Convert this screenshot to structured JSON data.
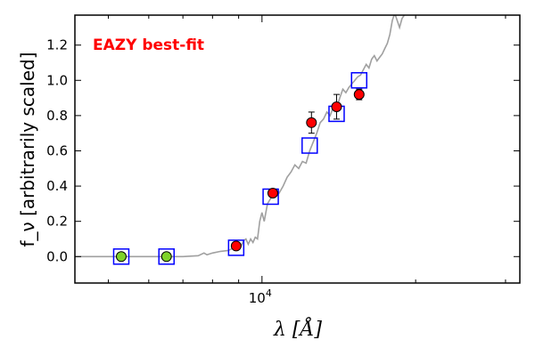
{
  "chart_data": {
    "type": "scatter",
    "annotation": "EAZY best-fit",
    "annotation_color": "#ff0000",
    "ylabel": "f_ν [arbitrarily scaled]",
    "xlabel": "λ [Å]",
    "x_scale": "log",
    "xlim": [
      4300,
      32000
    ],
    "ylim": [
      -0.15,
      1.37
    ],
    "yticks": [
      "0.0",
      "0.2",
      "0.4",
      "0.6",
      "0.8",
      "1.0",
      "1.2"
    ],
    "xtick_label": "10^4",
    "colors": {
      "model_line": "#a0a0a0",
      "model_box": "#0000ff",
      "detection": "#ff0000",
      "upper_limit": "#7fd32a"
    },
    "model_points": [
      {
        "x": 5300,
        "y": 0.0
      },
      {
        "x": 6500,
        "y": 0.0
      },
      {
        "x": 8900,
        "y": 0.05
      },
      {
        "x": 10400,
        "y": 0.34
      },
      {
        "x": 12400,
        "y": 0.63
      },
      {
        "x": 14000,
        "y": 0.81
      },
      {
        "x": 15500,
        "y": 1.0
      }
    ],
    "nondetections": [
      {
        "x": 5300,
        "y": 0.0
      },
      {
        "x": 6500,
        "y": 0.0
      }
    ],
    "detections": [
      {
        "x": 8900,
        "y": 0.06,
        "err": 0.0
      },
      {
        "x": 10500,
        "y": 0.36,
        "err": 0.01
      },
      {
        "x": 12500,
        "y": 0.76,
        "err": 0.06
      },
      {
        "x": 14000,
        "y": 0.85,
        "err": 0.07
      },
      {
        "x": 15500,
        "y": 0.92,
        "err": 0.03
      }
    ],
    "model_sed": [
      [
        4300,
        0.0
      ],
      [
        7000,
        0.0
      ],
      [
        7500,
        0.005
      ],
      [
        7700,
        0.02
      ],
      [
        7800,
        0.01
      ],
      [
        8000,
        0.02
      ],
      [
        8300,
        0.03
      ],
      [
        8600,
        0.035
      ],
      [
        8800,
        0.05
      ],
      [
        9000,
        0.075
      ],
      [
        9100,
        0.06
      ],
      [
        9200,
        0.09
      ],
      [
        9300,
        0.1
      ],
      [
        9400,
        0.07
      ],
      [
        9500,
        0.1
      ],
      [
        9600,
        0.08
      ],
      [
        9700,
        0.11
      ],
      [
        9800,
        0.1
      ],
      [
        9900,
        0.2
      ],
      [
        10000,
        0.25
      ],
      [
        10100,
        0.2
      ],
      [
        10250,
        0.3
      ],
      [
        10400,
        0.33
      ],
      [
        10600,
        0.38
      ],
      [
        10800,
        0.36
      ],
      [
        11000,
        0.4
      ],
      [
        11200,
        0.45
      ],
      [
        11400,
        0.48
      ],
      [
        11600,
        0.52
      ],
      [
        11800,
        0.5
      ],
      [
        12000,
        0.54
      ],
      [
        12200,
        0.53
      ],
      [
        12400,
        0.6
      ],
      [
        12600,
        0.65
      ],
      [
        12800,
        0.7
      ],
      [
        13000,
        0.76
      ],
      [
        13200,
        0.78
      ],
      [
        13400,
        0.82
      ],
      [
        13600,
        0.8
      ],
      [
        13800,
        0.85
      ],
      [
        14000,
        0.84
      ],
      [
        14200,
        0.9
      ],
      [
        14400,
        0.95
      ],
      [
        14600,
        0.93
      ],
      [
        14800,
        0.96
      ],
      [
        15000,
        0.98
      ],
      [
        15200,
        1.0
      ],
      [
        15400,
        1.02
      ],
      [
        15600,
        1.03
      ],
      [
        15800,
        1.06
      ],
      [
        16000,
        1.09
      ],
      [
        16200,
        1.07
      ],
      [
        16400,
        1.12
      ],
      [
        16600,
        1.14
      ],
      [
        16800,
        1.11
      ],
      [
        17000,
        1.13
      ],
      [
        17200,
        1.15
      ],
      [
        17400,
        1.18
      ],
      [
        17600,
        1.21
      ],
      [
        17800,
        1.26
      ],
      [
        18000,
        1.34
      ],
      [
        18200,
        1.38
      ],
      [
        18400,
        1.34
      ],
      [
        18600,
        1.3
      ],
      [
        18800,
        1.35
      ],
      [
        19000,
        1.37
      ]
    ]
  }
}
